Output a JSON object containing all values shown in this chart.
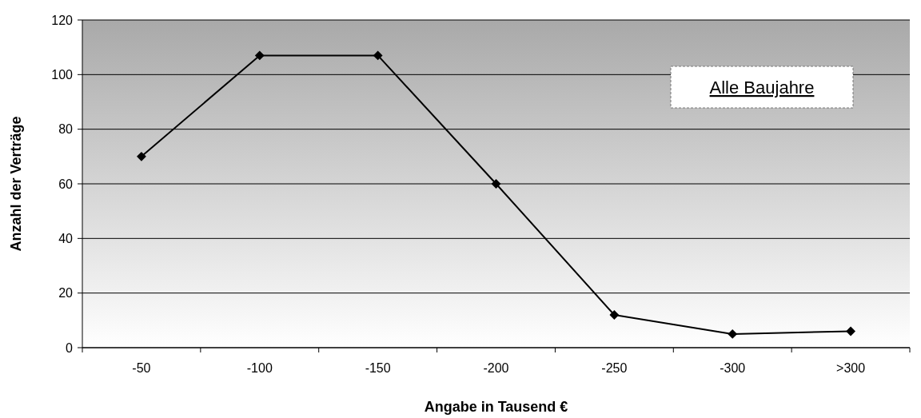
{
  "chart_data": {
    "type": "line",
    "xlabel": "Angabe in Tausend €",
    "ylabel": "Anzahl der Verträge",
    "categories": [
      "-50",
      "-100",
      "-150",
      "-200",
      "-250",
      "-300",
      ">300"
    ],
    "series": [
      {
        "color": "#000000",
        "values": [
          70,
          107,
          107,
          60,
          12,
          5,
          6
        ]
      }
    ],
    "ylim": [
      0,
      120
    ],
    "yticks": [
      0,
      20,
      40,
      60,
      80,
      100,
      120
    ],
    "grid": "y",
    "marker": "diamond",
    "line_style": "solid",
    "annotations": [
      "Alle Baujahre"
    ]
  }
}
